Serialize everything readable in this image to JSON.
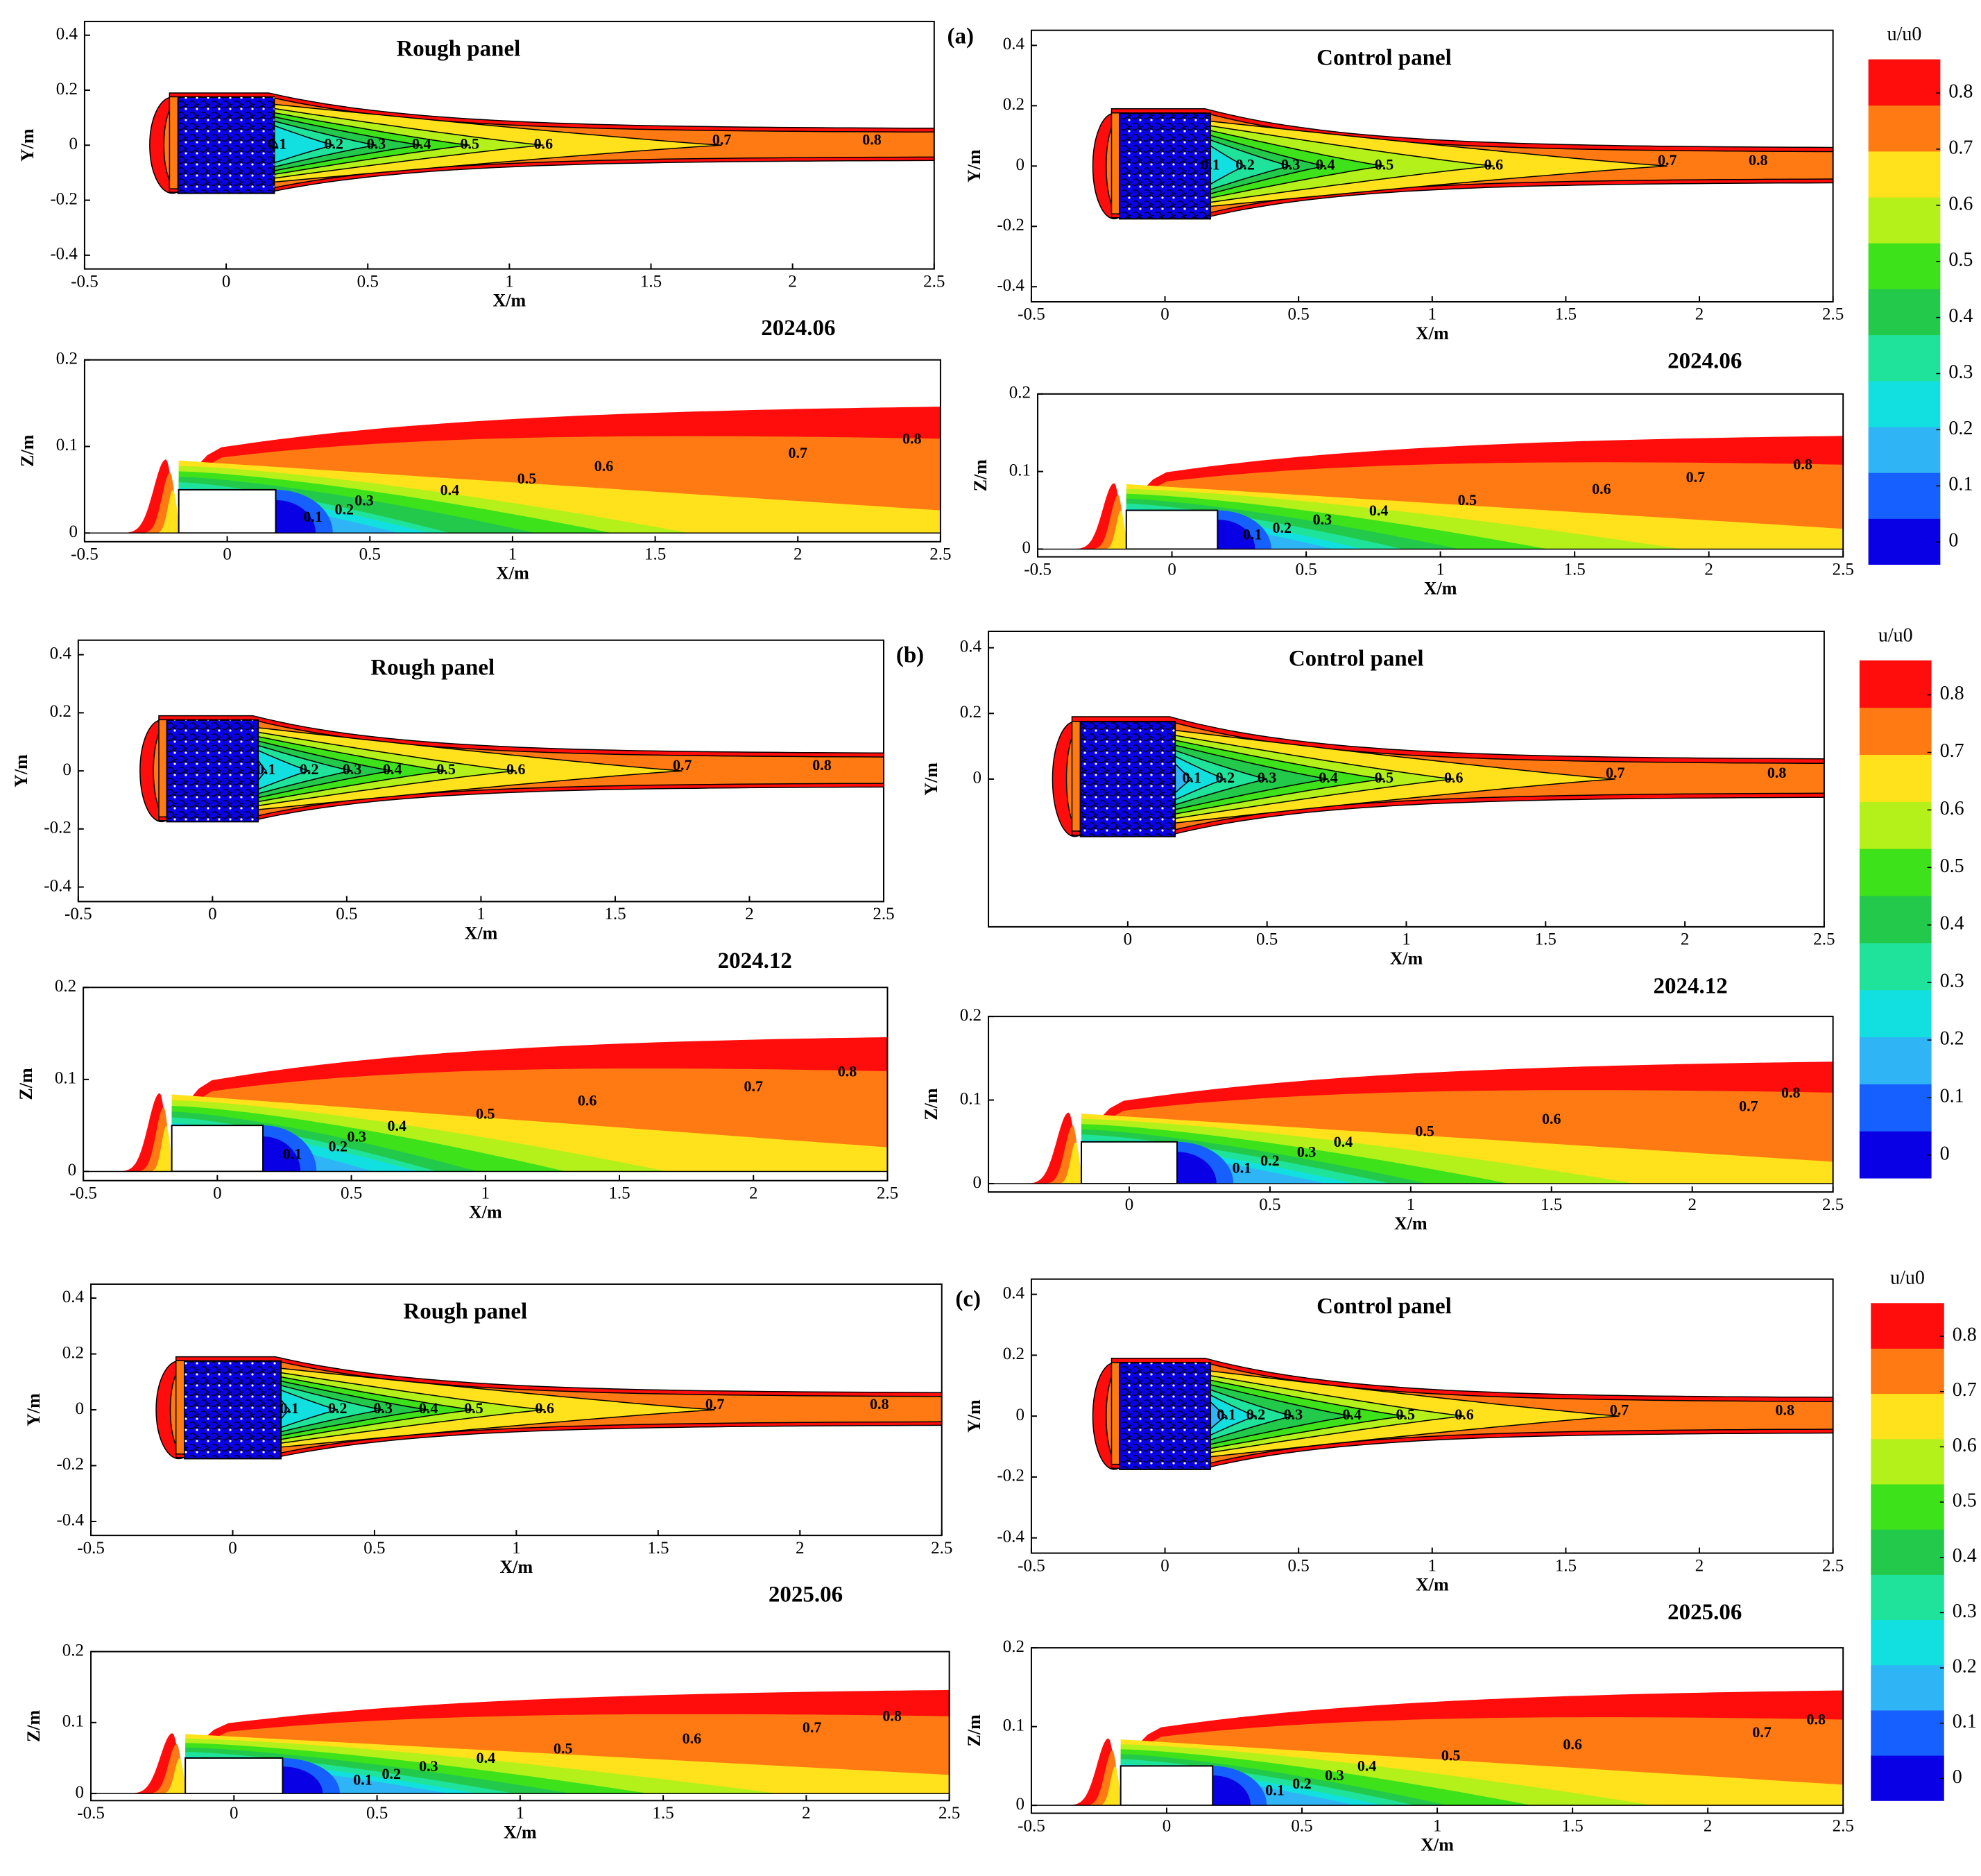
{
  "chart_data": [
    {
      "type": "plan",
      "title": "Rough panel",
      "panel_label": "(a)",
      "caption": "2024.06",
      "xlabel": "X/m",
      "ylabel": "Y/m",
      "xlim": [
        -0.5,
        2.5
      ],
      "ylim": [
        -0.45,
        0.45
      ],
      "xticks": [
        -0.5,
        0,
        0.5,
        1,
        1.5,
        2,
        2.5
      ],
      "yticks": [
        0.4,
        0.2,
        0,
        -0.2,
        -0.4
      ],
      "contours": [
        {
          "level": 0.1,
          "x": 0.18
        },
        {
          "level": 0.2,
          "x": 0.38
        },
        {
          "level": 0.3,
          "x": 0.53
        },
        {
          "level": 0.4,
          "x": 0.69
        },
        {
          "level": 0.5,
          "x": 0.86
        },
        {
          "level": 0.6,
          "x": 1.12
        },
        {
          "level": 0.7,
          "x": 1.75
        },
        {
          "level": 0.8,
          "x": 2.28
        }
      ]
    },
    {
      "type": "plan",
      "title": "Control panel",
      "caption": "2024.06",
      "xlabel": "X/m",
      "ylabel": "Y/m",
      "xlim": [
        -0.5,
        2.5
      ],
      "ylim": [
        -0.45,
        0.45
      ],
      "xticks": [
        -0.5,
        0,
        0.5,
        1,
        1.5,
        2,
        2.5
      ],
      "yticks": [
        0.4,
        0.2,
        0,
        -0.2,
        -0.4
      ],
      "contours": [
        {
          "level": 0.1,
          "x": 0.17
        },
        {
          "level": 0.2,
          "x": 0.3
        },
        {
          "level": 0.3,
          "x": 0.47
        },
        {
          "level": 0.4,
          "x": 0.6
        },
        {
          "level": 0.5,
          "x": 0.82
        },
        {
          "level": 0.6,
          "x": 1.23
        },
        {
          "level": 0.7,
          "x": 1.88
        },
        {
          "level": 0.8,
          "x": 2.22
        }
      ]
    },
    {
      "type": "side",
      "xlabel": "X/m",
      "ylabel": "Z/m",
      "xlim": [
        -0.5,
        2.5
      ],
      "ylim": [
        -0.01,
        0.2
      ],
      "xticks": [
        -0.5,
        0,
        0.5,
        1,
        1.5,
        2,
        2.5
      ],
      "yticks": [
        0.2,
        0.1,
        0
      ],
      "contours": [
        {
          "level": 0.1,
          "x": 0.3
        },
        {
          "level": 0.2,
          "x": 0.41
        },
        {
          "level": 0.3,
          "x": 0.48
        },
        {
          "level": 0.4,
          "x": 0.78
        },
        {
          "level": 0.5,
          "x": 1.05
        },
        {
          "level": 0.6,
          "x": 1.32
        },
        {
          "level": 0.7,
          "x": 2.0
        },
        {
          "level": 0.8,
          "x": 2.4
        }
      ]
    },
    {
      "type": "side",
      "xlabel": "X/m",
      "ylabel": "Z/m",
      "xlim": [
        -0.5,
        2.5
      ],
      "ylim": [
        -0.01,
        0.2
      ],
      "xticks": [
        -0.5,
        0,
        0.5,
        1,
        1.5,
        2,
        2.5
      ],
      "yticks": [
        0.2,
        0.1,
        0
      ],
      "contours": [
        {
          "level": 0.1,
          "x": 0.3
        },
        {
          "level": 0.2,
          "x": 0.41
        },
        {
          "level": 0.3,
          "x": 0.56
        },
        {
          "level": 0.4,
          "x": 0.77
        },
        {
          "level": 0.5,
          "x": 1.1
        },
        {
          "level": 0.6,
          "x": 1.6
        },
        {
          "level": 0.7,
          "x": 1.95
        },
        {
          "level": 0.8,
          "x": 2.35
        }
      ]
    },
    {
      "type": "colorbar",
      "title": "u/u0",
      "ylim": [
        -0.04,
        0.86
      ],
      "yticks": [
        0,
        0.1,
        0.2,
        0.3,
        0.4,
        0.5,
        0.6,
        0.7,
        0.8
      ],
      "colors": [
        "#0a00e6",
        "#1560ff",
        "#2fb4f5",
        "#12e0e0",
        "#1fe39a",
        "#22c94a",
        "#3de21a",
        "#b4f01a",
        "#ffe21c",
        "#ff7a12",
        "#ff0c0c"
      ]
    },
    {
      "type": "plan",
      "title": "Rough panel",
      "panel_label": "(b)",
      "caption": "2024.12",
      "xlabel": "X/m",
      "ylabel": "Y/m",
      "xlim": [
        -0.5,
        2.5
      ],
      "ylim": [
        -0.45,
        0.45
      ],
      "xticks": [
        -0.5,
        0,
        0.5,
        1,
        1.5,
        2,
        2.5
      ],
      "yticks": [
        0.4,
        0.2,
        0,
        -0.2,
        -0.4
      ],
      "contours": [
        {
          "level": 0.1,
          "x": 0.2
        },
        {
          "level": 0.2,
          "x": 0.36
        },
        {
          "level": 0.3,
          "x": 0.52
        },
        {
          "level": 0.4,
          "x": 0.67
        },
        {
          "level": 0.5,
          "x": 0.87
        },
        {
          "level": 0.6,
          "x": 1.13
        },
        {
          "level": 0.7,
          "x": 1.75
        },
        {
          "level": 0.8,
          "x": 2.27
        }
      ]
    },
    {
      "type": "plan",
      "title": "Control panel",
      "caption": "2024.12",
      "xlabel": "X/m",
      "ylabel": "Y/m",
      "xlim": [
        -0.5,
        2.5
      ],
      "ylim": [
        -0.45,
        0.45
      ],
      "xticks": [
        0,
        0.5,
        1,
        1.5,
        2,
        2.5
      ],
      "yticks": [
        0.4,
        0.2,
        0
      ],
      "contours": [
        {
          "level": 0.1,
          "x": 0.23
        },
        {
          "level": 0.2,
          "x": 0.35
        },
        {
          "level": 0.3,
          "x": 0.5
        },
        {
          "level": 0.4,
          "x": 0.72
        },
        {
          "level": 0.5,
          "x": 0.92
        },
        {
          "level": 0.6,
          "x": 1.17
        },
        {
          "level": 0.7,
          "x": 1.75
        },
        {
          "level": 0.8,
          "x": 2.33
        }
      ]
    },
    {
      "type": "side",
      "xlabel": "X/m",
      "ylabel": "Z/m",
      "xlim": [
        -0.5,
        2.5
      ],
      "ylim": [
        -0.01,
        0.2
      ],
      "xticks": [
        -0.5,
        0,
        0.5,
        1,
        1.5,
        2,
        2.5
      ],
      "yticks": [
        0.2,
        0.1,
        0
      ],
      "contours": [
        {
          "level": 0.1,
          "x": 0.28
        },
        {
          "level": 0.2,
          "x": 0.45
        },
        {
          "level": 0.3,
          "x": 0.52
        },
        {
          "level": 0.4,
          "x": 0.67
        },
        {
          "level": 0.5,
          "x": 1.0
        },
        {
          "level": 0.6,
          "x": 1.38
        },
        {
          "level": 0.7,
          "x": 2.0
        },
        {
          "level": 0.8,
          "x": 2.35
        }
      ]
    },
    {
      "type": "side",
      "xlabel": "X/m",
      "ylabel": "Z/m",
      "xlim": [
        -0.5,
        2.5
      ],
      "ylim": [
        -0.01,
        0.2
      ],
      "xticks": [
        0,
        0.5,
        1,
        1.5,
        2,
        2.5
      ],
      "yticks": [
        0.2,
        0.1,
        0
      ],
      "contours": [
        {
          "level": 0.1,
          "x": 0.4
        },
        {
          "level": 0.2,
          "x": 0.5
        },
        {
          "level": 0.3,
          "x": 0.63
        },
        {
          "level": 0.4,
          "x": 0.76
        },
        {
          "level": 0.5,
          "x": 1.05
        },
        {
          "level": 0.6,
          "x": 1.5
        },
        {
          "level": 0.7,
          "x": 2.2
        },
        {
          "level": 0.8,
          "x": 2.35
        }
      ]
    },
    {
      "type": "colorbar",
      "title": "u/u0",
      "ylim": [
        -0.04,
        0.86
      ],
      "yticks": [
        0,
        0.1,
        0.2,
        0.3,
        0.4,
        0.5,
        0.6,
        0.7,
        0.8
      ],
      "colors": [
        "#0a00e6",
        "#1560ff",
        "#2fb4f5",
        "#12e0e0",
        "#1fe39a",
        "#22c94a",
        "#3de21a",
        "#b4f01a",
        "#ffe21c",
        "#ff7a12",
        "#ff0c0c"
      ]
    },
    {
      "type": "plan",
      "title": "Rough panel",
      "panel_label": "(c)",
      "caption": "2025.06",
      "xlabel": "X/m",
      "ylabel": "Y/m",
      "xlim": [
        -0.5,
        2.5
      ],
      "ylim": [
        -0.45,
        0.45
      ],
      "xticks": [
        -0.5,
        0,
        0.5,
        1,
        1.5,
        2,
        2.5
      ],
      "yticks": [
        0.4,
        0.2,
        0,
        -0.2,
        -0.4
      ],
      "contours": [
        {
          "level": 0.1,
          "x": 0.2
        },
        {
          "level": 0.2,
          "x": 0.37
        },
        {
          "level": 0.3,
          "x": 0.53
        },
        {
          "level": 0.4,
          "x": 0.69
        },
        {
          "level": 0.5,
          "x": 0.85
        },
        {
          "level": 0.6,
          "x": 1.1
        },
        {
          "level": 0.7,
          "x": 1.7
        },
        {
          "level": 0.8,
          "x": 2.28
        }
      ]
    },
    {
      "type": "plan",
      "title": "Control panel",
      "caption": "2025.06",
      "xlabel": "X/m",
      "ylabel": "Y/m",
      "xlim": [
        -0.5,
        2.5
      ],
      "ylim": [
        -0.45,
        0.45
      ],
      "xticks": [
        -0.5,
        0,
        0.5,
        1,
        1.5,
        2,
        2.5
      ],
      "yticks": [
        0.4,
        0.2,
        0,
        -0.2,
        -0.4
      ],
      "contours": [
        {
          "level": 0.1,
          "x": 0.23
        },
        {
          "level": 0.2,
          "x": 0.34
        },
        {
          "level": 0.3,
          "x": 0.48
        },
        {
          "level": 0.4,
          "x": 0.7
        },
        {
          "level": 0.5,
          "x": 0.9
        },
        {
          "level": 0.6,
          "x": 1.12
        },
        {
          "level": 0.7,
          "x": 1.7
        },
        {
          "level": 0.8,
          "x": 2.32
        }
      ]
    },
    {
      "type": "side",
      "xlabel": "X/m",
      "ylabel": "Z/m",
      "xlim": [
        -0.5,
        2.5
      ],
      "ylim": [
        -0.01,
        0.2
      ],
      "xticks": [
        -0.5,
        0,
        0.5,
        1,
        1.5,
        2,
        2.5
      ],
      "yticks": [
        0.2,
        0.1,
        0
      ],
      "contours": [
        {
          "level": 0.1,
          "x": 0.45
        },
        {
          "level": 0.2,
          "x": 0.55
        },
        {
          "level": 0.3,
          "x": 0.68
        },
        {
          "level": 0.4,
          "x": 0.88
        },
        {
          "level": 0.5,
          "x": 1.15
        },
        {
          "level": 0.6,
          "x": 1.6
        },
        {
          "level": 0.7,
          "x": 2.02
        },
        {
          "level": 0.8,
          "x": 2.3
        }
      ]
    },
    {
      "type": "side",
      "xlabel": "X/m",
      "ylabel": "Z/m",
      "xlim": [
        -0.5,
        2.5
      ],
      "ylim": [
        -0.01,
        0.2
      ],
      "xticks": [
        -0.5,
        0,
        0.5,
        1,
        1.5,
        2,
        2.5
      ],
      "yticks": [
        0.2,
        0.1,
        0
      ],
      "contours": [
        {
          "level": 0.1,
          "x": 0.4
        },
        {
          "level": 0.2,
          "x": 0.5
        },
        {
          "level": 0.3,
          "x": 0.62
        },
        {
          "level": 0.4,
          "x": 0.74
        },
        {
          "level": 0.5,
          "x": 1.05
        },
        {
          "level": 0.6,
          "x": 1.5
        },
        {
          "level": 0.7,
          "x": 2.2
        },
        {
          "level": 0.8,
          "x": 2.4
        }
      ]
    },
    {
      "type": "colorbar",
      "title": "u/u0",
      "ylim": [
        -0.04,
        0.86
      ],
      "yticks": [
        0,
        0.1,
        0.2,
        0.3,
        0.4,
        0.5,
        0.6,
        0.7,
        0.8
      ],
      "colors": [
        "#0a00e6",
        "#1560ff",
        "#2fb4f5",
        "#12e0e0",
        "#1fe39a",
        "#22c94a",
        "#3de21a",
        "#b4f01a",
        "#ffe21c",
        "#ff7a12",
        "#ff0c0c"
      ]
    }
  ]
}
